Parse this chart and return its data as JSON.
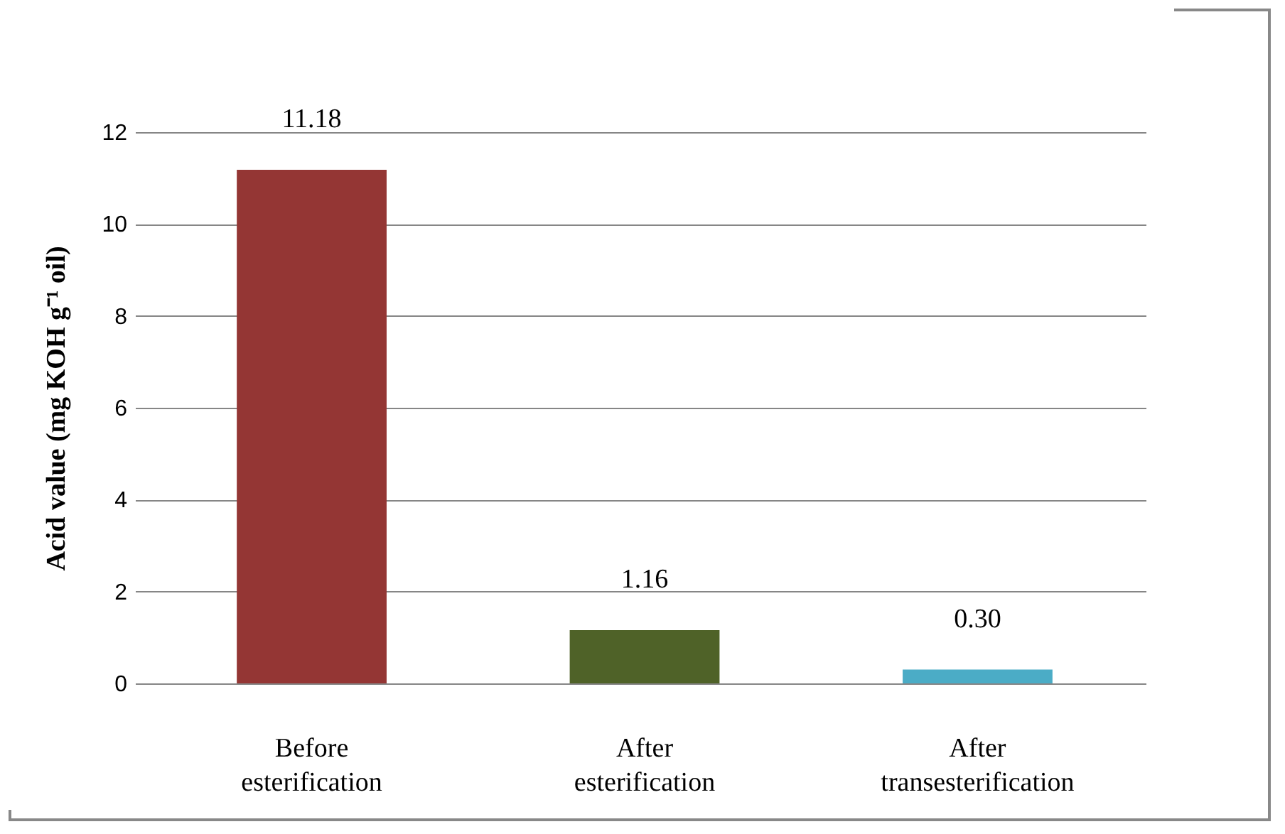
{
  "chart_data": {
    "type": "bar",
    "ylabel": "Acid value (mg KOH g⁻¹ oil)",
    "categories": [
      "Before esterification",
      "After esterification",
      "After transesterification"
    ],
    "values": [
      11.18,
      1.16,
      0.3
    ],
    "colors": [
      "#943634",
      "#4f6228",
      "#4bacc6"
    ],
    "value_labels": [
      "11.18",
      "1.16",
      "0.30"
    ],
    "ylim": [
      0,
      12
    ],
    "yticks": [
      0,
      2,
      4,
      6,
      8,
      10,
      12
    ],
    "grid": "y",
    "legend": false
  }
}
